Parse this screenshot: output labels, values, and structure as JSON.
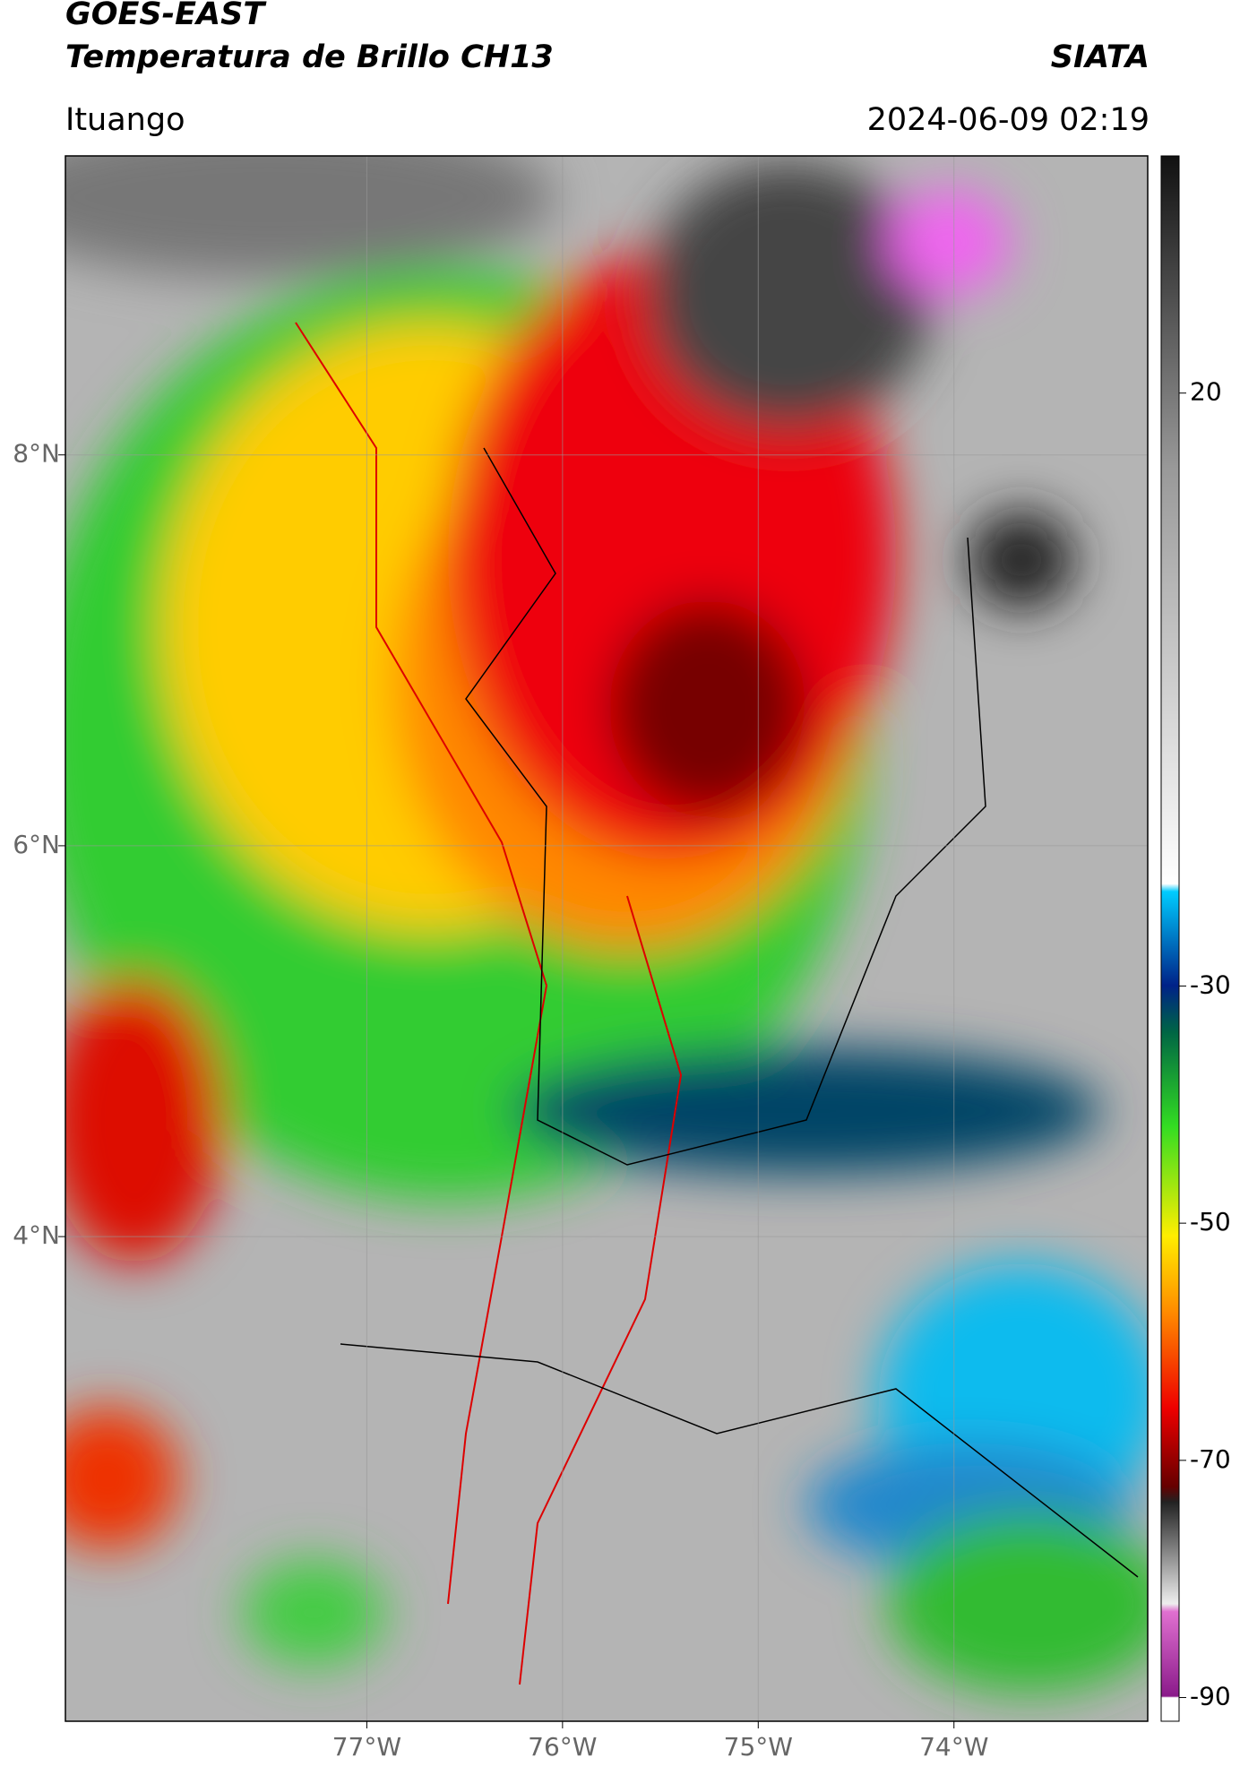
{
  "header": {
    "title": "GOES-EAST",
    "subtitle": "Temperatura de Brillo CH13",
    "agency": "SIATA",
    "location": "Ituango",
    "datetime": "2024-06-09 02:19"
  },
  "map": {
    "xlim": [
      -78.54,
      -73.01
    ],
    "ylim": [
      1.52,
      9.53
    ],
    "xticks": [
      {
        "value": -77,
        "label": "77°W"
      },
      {
        "value": -76,
        "label": "76°W"
      },
      {
        "value": -75,
        "label": "75°W"
      },
      {
        "value": -74,
        "label": "74°W"
      }
    ],
    "yticks": [
      {
        "value": 4,
        "label": "4°N"
      },
      {
        "value": 6,
        "label": "6°N"
      },
      {
        "value": 8,
        "label": "8°N"
      }
    ],
    "grid": true
  },
  "colorbar": {
    "lim": [
      -92,
      40
    ],
    "ticks": [
      -90,
      -70,
      -50,
      -30,
      20
    ]
  }
}
